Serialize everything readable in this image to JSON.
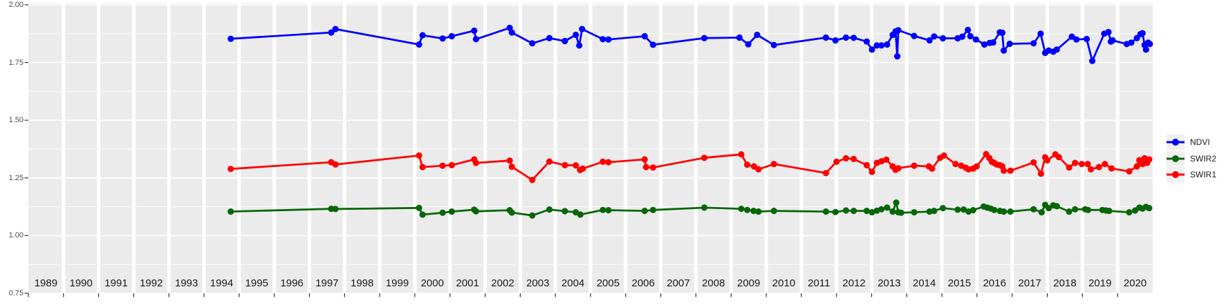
{
  "chart_data": {
    "type": "line",
    "title": "",
    "xlabel": "",
    "ylabel": "",
    "grid": true,
    "legend_position": "right",
    "panel_bg": "#EBEBEB",
    "grid_color": "#FFFFFF",
    "tick_color": "#333333",
    "y_axis_text_color": "#4d4d4d",
    "x_axis_text_color": "#1a1a1a",
    "x_range": [
      1989,
      2021
    ],
    "y_range": [
      0.75,
      2.0
    ],
    "x_tick_labels": [
      "1989",
      "1990",
      "1991",
      "1992",
      "1993",
      "1994",
      "1995",
      "1996",
      "1997",
      "1998",
      "1999",
      "2000",
      "2001",
      "2002",
      "2003",
      "2004",
      "2005",
      "2006",
      "2007",
      "2008",
      "2009",
      "2010",
      "2011",
      "2012",
      "2013",
      "2014",
      "2015",
      "2016",
      "2017",
      "2018",
      "2019",
      "2020"
    ],
    "y_tick_values": [
      0.75,
      1.0,
      1.25,
      1.5,
      1.75,
      2.0
    ],
    "y_tick_labels": [
      "0.75",
      "1.00",
      "1.25",
      "1.50",
      "1.75",
      "2.00"
    ],
    "y_minor_values": [
      0.875,
      1.125,
      1.375,
      1.625,
      1.875
    ],
    "legend": [
      {
        "label": "NDVI",
        "color": "#0000FF"
      },
      {
        "label": "SWIR2",
        "color": "#076607"
      },
      {
        "label": "SWIR1",
        "color": "#FF0000"
      }
    ],
    "series": [
      {
        "name": "NDVI",
        "color": "#0000FF",
        "points": [
          [
            1994.76,
            1.853
          ],
          [
            1997.62,
            1.88
          ],
          [
            1997.74,
            1.895
          ],
          [
            2000.12,
            1.828
          ],
          [
            2000.22,
            1.868
          ],
          [
            2000.79,
            1.854
          ],
          [
            2001.05,
            1.864
          ],
          [
            2001.69,
            1.888
          ],
          [
            2001.74,
            1.851
          ],
          [
            2002.7,
            1.9
          ],
          [
            2002.76,
            1.88
          ],
          [
            2003.34,
            1.833
          ],
          [
            2003.83,
            1.856
          ],
          [
            2004.27,
            1.843
          ],
          [
            2004.58,
            1.87
          ],
          [
            2004.68,
            1.824
          ],
          [
            2004.76,
            1.895
          ],
          [
            2005.35,
            1.851
          ],
          [
            2005.51,
            1.85
          ],
          [
            2006.54,
            1.864
          ],
          [
            2006.78,
            1.827
          ],
          [
            2008.24,
            1.856
          ],
          [
            2009.24,
            1.858
          ],
          [
            2009.49,
            1.829
          ],
          [
            2009.74,
            1.87
          ],
          [
            2010.22,
            1.826
          ],
          [
            2011.7,
            1.858
          ],
          [
            2011.97,
            1.846
          ],
          [
            2012.27,
            1.858
          ],
          [
            2012.49,
            1.857
          ],
          [
            2012.86,
            1.841
          ],
          [
            2013.01,
            1.806
          ],
          [
            2013.15,
            1.824
          ],
          [
            2013.28,
            1.824
          ],
          [
            2013.44,
            1.828
          ],
          [
            2013.6,
            1.87
          ],
          [
            2013.68,
            1.885
          ],
          [
            2013.73,
            1.777
          ],
          [
            2013.76,
            1.89
          ],
          [
            2014.21,
            1.865
          ],
          [
            2014.65,
            1.846
          ],
          [
            2014.78,
            1.863
          ],
          [
            2015.03,
            1.855
          ],
          [
            2015.45,
            1.855
          ],
          [
            2015.58,
            1.862
          ],
          [
            2015.74,
            1.891
          ],
          [
            2015.81,
            1.864
          ],
          [
            2015.97,
            1.85
          ],
          [
            2016.21,
            1.828
          ],
          [
            2016.36,
            1.835
          ],
          [
            2016.46,
            1.837
          ],
          [
            2016.65,
            1.881
          ],
          [
            2016.72,
            1.879
          ],
          [
            2016.76,
            1.802
          ],
          [
            2016.93,
            1.831
          ],
          [
            2017.61,
            1.833
          ],
          [
            2017.81,
            1.875
          ],
          [
            2017.94,
            1.792
          ],
          [
            2018.04,
            1.802
          ],
          [
            2018.17,
            1.797
          ],
          [
            2018.27,
            1.806
          ],
          [
            2018.7,
            1.862
          ],
          [
            2018.83,
            1.85
          ],
          [
            2019.12,
            1.852
          ],
          [
            2019.28,
            1.757
          ],
          [
            2019.62,
            1.875
          ],
          [
            2019.74,
            1.882
          ],
          [
            2019.81,
            1.841
          ],
          [
            2019.86,
            1.846
          ],
          [
            2020.26,
            1.83
          ],
          [
            2020.39,
            1.836
          ],
          [
            2020.55,
            1.856
          ],
          [
            2020.65,
            1.873
          ],
          [
            2020.71,
            1.877
          ],
          [
            2020.77,
            1.826
          ],
          [
            2020.81,
            1.806
          ],
          [
            2020.87,
            1.836
          ],
          [
            2020.92,
            1.83
          ]
        ]
      },
      {
        "name": "SWIR2",
        "color": "#076607",
        "points": [
          [
            1994.76,
            1.104
          ],
          [
            1997.62,
            1.116
          ],
          [
            1997.74,
            1.115
          ],
          [
            2000.12,
            1.12
          ],
          [
            2000.22,
            1.091
          ],
          [
            2000.79,
            1.099
          ],
          [
            2001.05,
            1.104
          ],
          [
            2001.69,
            1.112
          ],
          [
            2001.74,
            1.105
          ],
          [
            2002.7,
            1.11
          ],
          [
            2002.76,
            1.1
          ],
          [
            2003.34,
            1.087
          ],
          [
            2003.83,
            1.113
          ],
          [
            2004.27,
            1.106
          ],
          [
            2004.58,
            1.101
          ],
          [
            2004.71,
            1.091
          ],
          [
            2005.35,
            1.111
          ],
          [
            2005.51,
            1.11
          ],
          [
            2006.54,
            1.107
          ],
          [
            2006.78,
            1.111
          ],
          [
            2008.24,
            1.121
          ],
          [
            2009.29,
            1.116
          ],
          [
            2009.46,
            1.111
          ],
          [
            2009.64,
            1.107
          ],
          [
            2009.78,
            1.104
          ],
          [
            2010.22,
            1.107
          ],
          [
            2011.7,
            1.104
          ],
          [
            2011.97,
            1.102
          ],
          [
            2012.27,
            1.109
          ],
          [
            2012.49,
            1.107
          ],
          [
            2012.86,
            1.107
          ],
          [
            2013.01,
            1.101
          ],
          [
            2013.15,
            1.108
          ],
          [
            2013.28,
            1.114
          ],
          [
            2013.44,
            1.121
          ],
          [
            2013.6,
            1.104
          ],
          [
            2013.7,
            1.143
          ],
          [
            2013.76,
            1.101
          ],
          [
            2013.84,
            1.099
          ],
          [
            2014.21,
            1.101
          ],
          [
            2014.65,
            1.104
          ],
          [
            2014.78,
            1.107
          ],
          [
            2015.03,
            1.119
          ],
          [
            2015.45,
            1.112
          ],
          [
            2015.62,
            1.113
          ],
          [
            2015.76,
            1.104
          ],
          [
            2015.89,
            1.11
          ],
          [
            2016.19,
            1.126
          ],
          [
            2016.29,
            1.121
          ],
          [
            2016.39,
            1.117
          ],
          [
            2016.49,
            1.111
          ],
          [
            2016.65,
            1.107
          ],
          [
            2016.76,
            1.104
          ],
          [
            2016.95,
            1.104
          ],
          [
            2017.61,
            1.114
          ],
          [
            2017.84,
            1.101
          ],
          [
            2017.94,
            1.133
          ],
          [
            2018.04,
            1.119
          ],
          [
            2018.17,
            1.131
          ],
          [
            2018.27,
            1.127
          ],
          [
            2018.62,
            1.104
          ],
          [
            2018.79,
            1.114
          ],
          [
            2019.08,
            1.114
          ],
          [
            2019.16,
            1.111
          ],
          [
            2019.57,
            1.111
          ],
          [
            2019.67,
            1.109
          ],
          [
            2019.76,
            1.107
          ],
          [
            2020.33,
            1.101
          ],
          [
            2020.5,
            1.109
          ],
          [
            2020.62,
            1.121
          ],
          [
            2020.71,
            1.117
          ],
          [
            2020.81,
            1.124
          ],
          [
            2020.9,
            1.119
          ]
        ]
      },
      {
        "name": "SWIR1",
        "color": "#FF0000",
        "points": [
          [
            1994.76,
            1.289
          ],
          [
            1997.62,
            1.318
          ],
          [
            1997.74,
            1.308
          ],
          [
            2000.12,
            1.347
          ],
          [
            2000.22,
            1.297
          ],
          [
            2000.79,
            1.303
          ],
          [
            2001.05,
            1.305
          ],
          [
            2001.69,
            1.33
          ],
          [
            2001.74,
            1.315
          ],
          [
            2002.7,
            1.325
          ],
          [
            2002.76,
            1.298
          ],
          [
            2003.34,
            1.241
          ],
          [
            2003.83,
            1.321
          ],
          [
            2004.27,
            1.305
          ],
          [
            2004.58,
            1.304
          ],
          [
            2004.7,
            1.284
          ],
          [
            2004.78,
            1.29
          ],
          [
            2005.35,
            1.32
          ],
          [
            2005.51,
            1.318
          ],
          [
            2006.54,
            1.33
          ],
          [
            2006.58,
            1.297
          ],
          [
            2006.78,
            1.295
          ],
          [
            2008.24,
            1.337
          ],
          [
            2009.29,
            1.352
          ],
          [
            2009.46,
            1.307
          ],
          [
            2009.65,
            1.3
          ],
          [
            2009.78,
            1.287
          ],
          [
            2010.22,
            1.31
          ],
          [
            2011.7,
            1.271
          ],
          [
            2012.0,
            1.32
          ],
          [
            2012.27,
            1.335
          ],
          [
            2012.49,
            1.332
          ],
          [
            2012.86,
            1.305
          ],
          [
            2013.01,
            1.276
          ],
          [
            2013.15,
            1.315
          ],
          [
            2013.28,
            1.322
          ],
          [
            2013.42,
            1.329
          ],
          [
            2013.6,
            1.3
          ],
          [
            2013.68,
            1.285
          ],
          [
            2013.76,
            1.292
          ],
          [
            2014.21,
            1.303
          ],
          [
            2014.63,
            1.3
          ],
          [
            2014.72,
            1.29
          ],
          [
            2014.95,
            1.337
          ],
          [
            2015.06,
            1.347
          ],
          [
            2015.39,
            1.31
          ],
          [
            2015.55,
            1.303
          ],
          [
            2015.68,
            1.294
          ],
          [
            2015.76,
            1.287
          ],
          [
            2015.89,
            1.29
          ],
          [
            2015.99,
            1.3
          ],
          [
            2016.26,
            1.353
          ],
          [
            2016.35,
            1.336
          ],
          [
            2016.42,
            1.32
          ],
          [
            2016.49,
            1.315
          ],
          [
            2016.56,
            1.308
          ],
          [
            2016.65,
            1.305
          ],
          [
            2016.72,
            1.3
          ],
          [
            2016.76,
            1.281
          ],
          [
            2016.95,
            1.281
          ],
          [
            2017.61,
            1.317
          ],
          [
            2017.82,
            1.268
          ],
          [
            2017.94,
            1.339
          ],
          [
            2018.0,
            1.326
          ],
          [
            2018.23,
            1.352
          ],
          [
            2018.33,
            1.34
          ],
          [
            2018.62,
            1.295
          ],
          [
            2018.79,
            1.315
          ],
          [
            2018.98,
            1.31
          ],
          [
            2019.15,
            1.31
          ],
          [
            2019.24,
            1.287
          ],
          [
            2019.47,
            1.297
          ],
          [
            2019.64,
            1.31
          ],
          [
            2019.83,
            1.291
          ],
          [
            2020.33,
            1.278
          ],
          [
            2020.55,
            1.3
          ],
          [
            2020.62,
            1.327
          ],
          [
            2020.71,
            1.31
          ],
          [
            2020.77,
            1.335
          ],
          [
            2020.84,
            1.315
          ],
          [
            2020.9,
            1.33
          ]
        ]
      }
    ]
  }
}
